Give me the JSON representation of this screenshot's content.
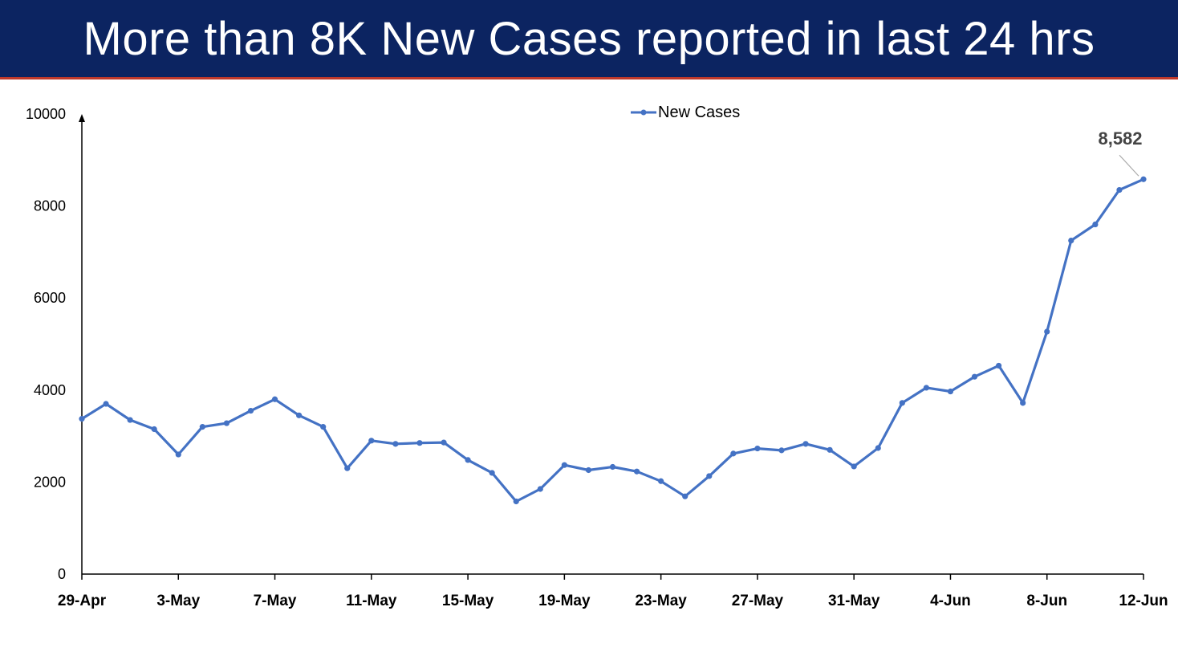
{
  "header": {
    "title": "More than 8K New Cases reported in last 24 hrs"
  },
  "colors": {
    "banner": "#0c2461",
    "accent_line": "#c0392b",
    "series": "#4472c4"
  },
  "chart_data": {
    "type": "line",
    "title": "More than 8K New Cases reported in last 24 hrs",
    "xlabel": "",
    "ylabel": "",
    "ylim": [
      0,
      10000
    ],
    "y_ticks": [
      0,
      2000,
      4000,
      6000,
      8000,
      10000
    ],
    "x_tick_labels": [
      "29-Apr",
      "3-May",
      "7-May",
      "11-May",
      "15-May",
      "19-May",
      "23-May",
      "27-May",
      "31-May",
      "4-Jun",
      "8-Jun",
      "12-Jun"
    ],
    "x_start": "29-Apr",
    "x_end": "12-Jun",
    "legend": {
      "position": "top-center"
    },
    "grid": false,
    "series": [
      {
        "name": "New Cases",
        "values": [
          3375,
          3700,
          3350,
          3150,
          2600,
          3200,
          3280,
          3550,
          3800,
          3450,
          3200,
          2300,
          2900,
          2830,
          2850,
          2860,
          2480,
          2200,
          1580,
          1850,
          2370,
          2260,
          2330,
          2230,
          2020,
          1690,
          2130,
          2620,
          2730,
          2690,
          2830,
          2700,
          2340,
          2740,
          3720,
          4050,
          3970,
          4290,
          4530,
          3720,
          5270,
          7250,
          7600,
          8350,
          8582
        ]
      }
    ],
    "annotations": [
      {
        "text": "8,582"
      }
    ]
  }
}
